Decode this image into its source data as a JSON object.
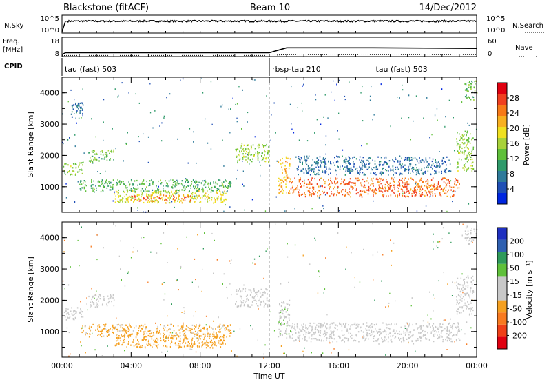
{
  "header": {
    "station": "Blackstone (fitACF)",
    "beam": "Beam 10",
    "date": "14/Dec/2012"
  },
  "left_labels": {
    "nsky": "N.Sky",
    "freq_line1": "Freq.",
    "freq_line2": "[MHz]",
    "cpid": "CPID"
  },
  "right_labels": {
    "nsearch": "N.Search",
    "nave": "Nave"
  },
  "noise_axis": {
    "left_ticks": [
      "10^5",
      "10^0"
    ],
    "right_ticks": [
      "10^5",
      "10^0"
    ]
  },
  "freq_axis": {
    "left_ticks": [
      "18",
      "8"
    ],
    "right_ticks": [
      "60",
      "0"
    ]
  },
  "cpid_segments": [
    {
      "label": "tau (fast) 503",
      "start_h": 0
    },
    {
      "label": "rbsp-tau 210",
      "start_h": 12
    },
    {
      "label": "tau (fast) 503",
      "start_h": 18
    }
  ],
  "x_axis": {
    "label": "Time UT",
    "ticks": [
      "00:00",
      "04:00",
      "08:00",
      "12:00",
      "16:00",
      "20:00",
      "00:00"
    ],
    "range_h": [
      0,
      24
    ]
  },
  "y_axis": {
    "label": "Slant Range [km]",
    "ticks": [
      "4000",
      "3000",
      "2000",
      "1000"
    ],
    "range_km": [
      180,
      4500
    ]
  },
  "chart_data": [
    {
      "type": "line",
      "name": "noise-frequency-panels",
      "x_unit": "hours UT",
      "noise_sky_log10": {
        "x": [
          0,
          0.2,
          24
        ],
        "y": [
          0.2,
          3.4,
          3.4
        ]
      },
      "frequency_mhz": {
        "x": [
          0,
          0.2,
          12,
          13,
          18,
          24
        ],
        "y": [
          9,
          10.5,
          10.5,
          14.5,
          14.5,
          14
        ]
      },
      "nave": {
        "x": [
          0,
          0.2,
          12,
          13,
          24
        ],
        "y": [
          1,
          2,
          2,
          6,
          6
        ]
      }
    },
    {
      "type": "heatmap",
      "name": "power",
      "colorbar_label": "Power [dB]",
      "colorbar_ticks": [
        "28",
        "24",
        "20",
        "16",
        "12",
        "8",
        "4"
      ],
      "value_range": [
        0,
        30
      ],
      "colors": [
        "#0026e0",
        "#1f4fb5",
        "#2e7a9a",
        "#2f9a6a",
        "#5fbf3a",
        "#a8d23a",
        "#f0e020",
        "#f8b020",
        "#f77a18",
        "#f04020",
        "#e00010"
      ],
      "regions": [
        {
          "t": [
            0.1,
            1.2
          ],
          "r": [
            1400,
            1800
          ],
          "p": 14
        },
        {
          "t": [
            1.5,
            3.0
          ],
          "r": [
            1800,
            2200
          ],
          "p": 13
        },
        {
          "t": [
            1.0,
            9.8
          ],
          "r": [
            850,
            1250
          ],
          "p": 11
        },
        {
          "t": [
            3.0,
            9.5
          ],
          "r": [
            500,
            900
          ],
          "p": 17
        },
        {
          "t": [
            4.0,
            7.5
          ],
          "r": [
            550,
            750
          ],
          "p": 24
        },
        {
          "t": [
            10.0,
            12.0
          ],
          "r": [
            1800,
            2400
          ],
          "p": 14
        },
        {
          "t": [
            12.5,
            13.2
          ],
          "r": [
            800,
            2000
          ],
          "p": 20
        },
        {
          "t": [
            13.2,
            23.0
          ],
          "r": [
            700,
            1300
          ],
          "p": 24
        },
        {
          "t": [
            13.5,
            22.5
          ],
          "r": [
            1400,
            2000
          ],
          "p": 6
        },
        {
          "t": [
            22.8,
            23.8
          ],
          "r": [
            1500,
            2800
          ],
          "p": 14
        },
        {
          "t": [
            23.3,
            24.0
          ],
          "r": [
            3800,
            4400
          ],
          "p": 12
        },
        {
          "t": [
            0.5,
            1.2
          ],
          "r": [
            3200,
            3700
          ],
          "p": 6
        }
      ]
    },
    {
      "type": "heatmap",
      "name": "velocity",
      "colorbar_label": "Velocity [m s⁻¹]",
      "colorbar_ticks": [
        "200",
        "100",
        "50",
        "15",
        "-15",
        "-50",
        "-100",
        "-200"
      ],
      "value_range": [
        -250,
        250
      ],
      "colors": [
        "#e00010",
        "#f04018",
        "#f87a20",
        "#f5a020",
        "#c8c8c8",
        "#c8c8c8",
        "#5fc03a",
        "#2f9a5a",
        "#2f60b0",
        "#1f30c0"
      ],
      "regions": [
        {
          "t": [
            0.1,
            1.2
          ],
          "r": [
            1400,
            1800
          ],
          "v": 0
        },
        {
          "t": [
            1.5,
            3.0
          ],
          "r": [
            1800,
            2200
          ],
          "v": 0
        },
        {
          "t": [
            1.0,
            9.8
          ],
          "r": [
            850,
            1250
          ],
          "v": -60
        },
        {
          "t": [
            3.0,
            9.5
          ],
          "r": [
            500,
            900
          ],
          "v": -70
        },
        {
          "t": [
            10.0,
            12.0
          ],
          "r": [
            1800,
            2400
          ],
          "v": 0
        },
        {
          "t": [
            12.5,
            13.2
          ],
          "r": [
            800,
            2000
          ],
          "v": 40
        },
        {
          "t": [
            13.2,
            23.0
          ],
          "r": [
            700,
            1300
          ],
          "v": 0
        },
        {
          "t": [
            22.8,
            23.8
          ],
          "r": [
            1500,
            2800
          ],
          "v": -30
        },
        {
          "t": [
            23.3,
            24.0
          ],
          "r": [
            3800,
            4400
          ],
          "v": -20
        }
      ]
    }
  ]
}
